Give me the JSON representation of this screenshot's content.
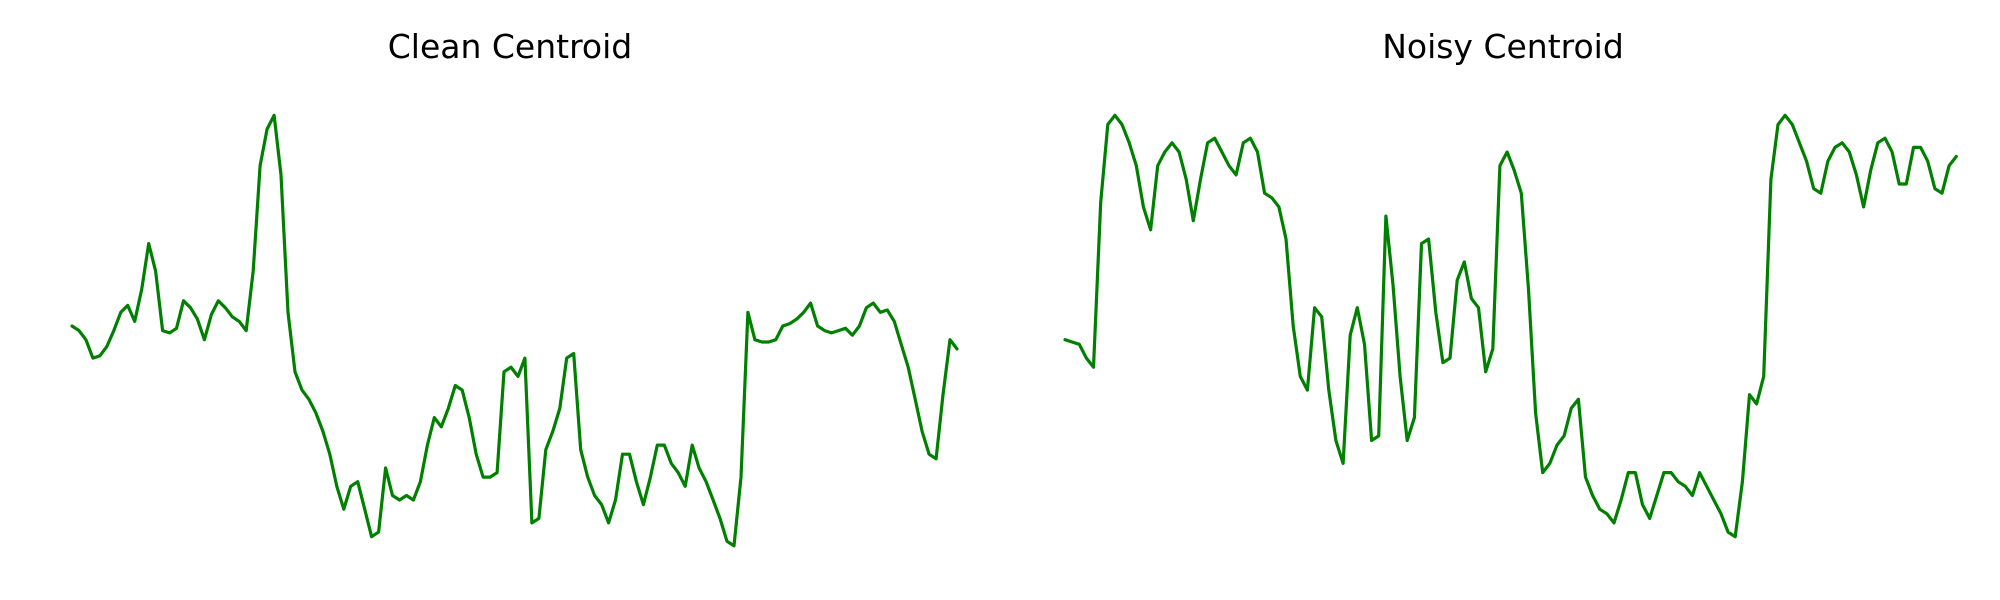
{
  "chart_data": [
    {
      "type": "line",
      "title": "Clean Centroid",
      "xlabel": "",
      "ylabel": "",
      "axes": "off",
      "grid": false,
      "color": "#008000",
      "x_range": [
        0,
        126
      ],
      "y_range": [
        0,
        1
      ],
      "series": [
        {
          "values": [
            0.5,
            0.49,
            0.47,
            0.43,
            0.435,
            0.455,
            0.49,
            0.53,
            0.545,
            0.51,
            0.58,
            0.68,
            0.62,
            0.49,
            0.485,
            0.495,
            0.555,
            0.54,
            0.515,
            0.47,
            0.525,
            0.555,
            0.54,
            0.52,
            0.51,
            0.49,
            0.62,
            0.85,
            0.93,
            0.96,
            0.83,
            0.53,
            0.4,
            0.36,
            0.34,
            0.31,
            0.27,
            0.22,
            0.15,
            0.1,
            0.15,
            0.16,
            0.1,
            0.04,
            0.05,
            0.19,
            0.13,
            0.12,
            0.13,
            0.12,
            0.16,
            0.24,
            0.3,
            0.28,
            0.32,
            0.37,
            0.36,
            0.3,
            0.22,
            0.17,
            0.17,
            0.18,
            0.4,
            0.41,
            0.39,
            0.43,
            0.07,
            0.08,
            0.23,
            0.27,
            0.32,
            0.43,
            0.44,
            0.23,
            0.17,
            0.13,
            0.11,
            0.07,
            0.12,
            0.22,
            0.22,
            0.16,
            0.11,
            0.17,
            0.24,
            0.24,
            0.2,
            0.18,
            0.15,
            0.24,
            0.19,
            0.16,
            0.12,
            0.08,
            0.03,
            0.02,
            0.17,
            0.53,
            0.47,
            0.465,
            0.465,
            0.47,
            0.5,
            0.505,
            0.515,
            0.53,
            0.55,
            0.5,
            0.49,
            0.485,
            0.49,
            0.495,
            0.48,
            0.5,
            0.54,
            0.55,
            0.53,
            0.535,
            0.51,
            0.46,
            0.41,
            0.34,
            0.27,
            0.22,
            0.21,
            0.35,
            0.47,
            0.45
          ]
        }
      ]
    },
    {
      "type": "line",
      "title": "Noisy Centroid",
      "xlabel": "",
      "ylabel": "",
      "axes": "off",
      "grid": false,
      "color": "#008000",
      "x_range": [
        0,
        123
      ],
      "y_range": [
        0,
        1
      ],
      "series": [
        {
          "values": [
            0.47,
            0.465,
            0.46,
            0.43,
            0.41,
            0.77,
            0.94,
            0.96,
            0.94,
            0.9,
            0.85,
            0.76,
            0.71,
            0.85,
            0.88,
            0.9,
            0.88,
            0.82,
            0.73,
            0.82,
            0.9,
            0.91,
            0.88,
            0.85,
            0.83,
            0.9,
            0.91,
            0.88,
            0.79,
            0.78,
            0.76,
            0.69,
            0.5,
            0.39,
            0.36,
            0.54,
            0.52,
            0.36,
            0.25,
            0.2,
            0.48,
            0.54,
            0.46,
            0.25,
            0.26,
            0.74,
            0.59,
            0.39,
            0.25,
            0.3,
            0.68,
            0.69,
            0.53,
            0.42,
            0.43,
            0.6,
            0.64,
            0.56,
            0.54,
            0.4,
            0.45,
            0.85,
            0.88,
            0.84,
            0.79,
            0.58,
            0.31,
            0.18,
            0.2,
            0.24,
            0.26,
            0.32,
            0.34,
            0.17,
            0.13,
            0.1,
            0.09,
            0.07,
            0.12,
            0.18,
            0.18,
            0.11,
            0.08,
            0.13,
            0.18,
            0.18,
            0.16,
            0.15,
            0.13,
            0.18,
            0.15,
            0.12,
            0.09,
            0.05,
            0.04,
            0.16,
            0.35,
            0.33,
            0.39,
            0.82,
            0.94,
            0.96,
            0.94,
            0.9,
            0.86,
            0.8,
            0.79,
            0.86,
            0.89,
            0.9,
            0.88,
            0.83,
            0.76,
            0.84,
            0.9,
            0.91,
            0.88,
            0.81,
            0.81,
            0.89,
            0.89,
            0.86,
            0.8,
            0.79,
            0.85,
            0.87
          ]
        }
      ]
    }
  ]
}
